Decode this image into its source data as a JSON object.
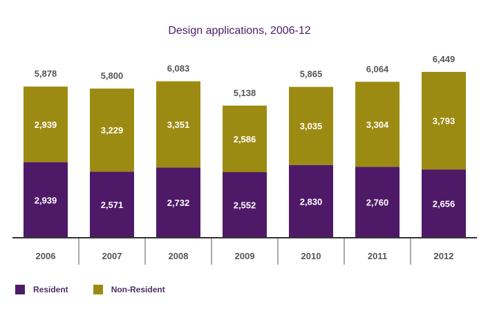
{
  "chart_data": {
    "type": "bar",
    "stacked": true,
    "title": "Design applications, 2006-12",
    "categories": [
      "2006",
      "2007",
      "2008",
      "2009",
      "2010",
      "2011",
      "2012"
    ],
    "series": [
      {
        "name": "Resident",
        "color": "#4e1a67",
        "values": [
          2939,
          2571,
          2732,
          2552,
          2830,
          2760,
          2656
        ],
        "labels": [
          "2,939",
          "2,571",
          "2,732",
          "2,552",
          "2,830",
          "2,760",
          "2,656"
        ]
      },
      {
        "name": "Non-Resident",
        "color": "#9c8b12",
        "values": [
          2939,
          3229,
          3351,
          2586,
          3035,
          3304,
          3793
        ],
        "labels": [
          "2,939",
          "3,229",
          "3,351",
          "2,586",
          "3,035",
          "3,304",
          "3,793"
        ]
      }
    ],
    "totals": [
      5878,
      5800,
      6083,
      5138,
      5865,
      6064,
      6449
    ],
    "total_labels": [
      "5,878",
      "5,800",
      "6,083",
      "5,138",
      "5,865",
      "6,064",
      "6,449"
    ],
    "ylim": [
      0,
      6449
    ],
    "legend_position": "bottom-left",
    "grid": false
  }
}
